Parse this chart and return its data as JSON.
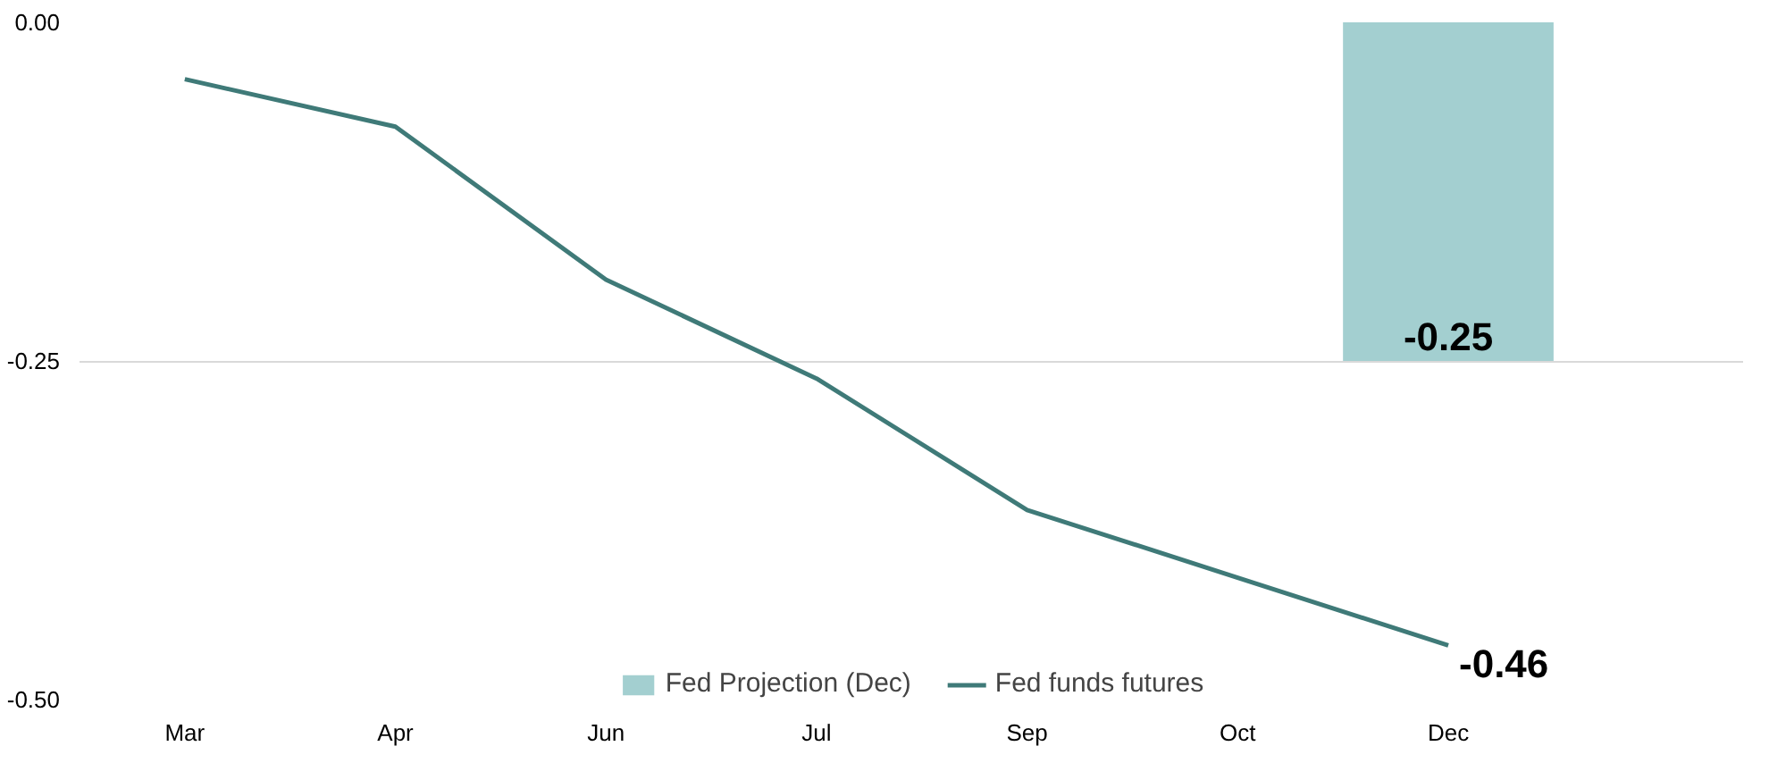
{
  "chart_data": {
    "type": "line",
    "categories": [
      "Mar",
      "Apr",
      "Jun",
      "Jul",
      "Sep",
      "Oct",
      "Dec"
    ],
    "series": [
      {
        "name": "Fed Projection (Dec)",
        "type": "bar",
        "color": "#a3cfd0",
        "values": [
          null,
          null,
          null,
          null,
          null,
          null,
          -0.25
        ],
        "value_labels": [
          null,
          null,
          null,
          null,
          null,
          null,
          "-0.25"
        ]
      },
      {
        "name": "Fed funds futures",
        "color": "#3f7a78",
        "values": [
          -0.042,
          -0.077,
          -0.19,
          -0.263,
          -0.36,
          -0.41,
          -0.46
        ],
        "value_labels": [
          null,
          null,
          null,
          null,
          null,
          null,
          "-0.46"
        ]
      }
    ],
    "ylim": [
      -0.5,
      0
    ],
    "yticks": [
      {
        "value": 0,
        "label": "0.00"
      },
      {
        "value": -0.25,
        "label": "-0.25"
      },
      {
        "value": -0.5,
        "label": "-0.50"
      }
    ],
    "grid": "y",
    "legend": "bottom",
    "marker": "none",
    "line_style": "solid"
  }
}
